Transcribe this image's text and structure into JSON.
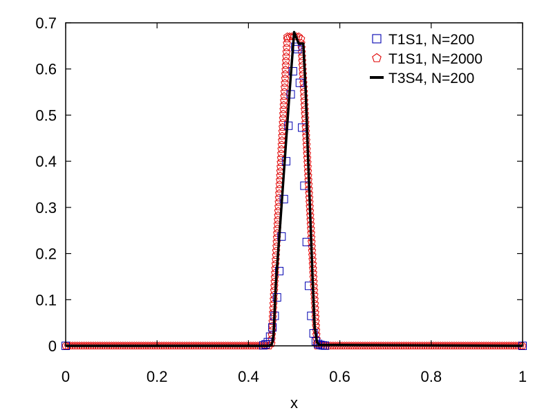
{
  "chart_data": {
    "type": "line",
    "xlabel": "x",
    "ylabel": "",
    "xlim": [
      0,
      1
    ],
    "ylim": [
      0,
      0.7
    ],
    "x_ticks": [
      {
        "value": 0,
        "label": "0"
      },
      {
        "value": 0.2,
        "label": "0.2"
      },
      {
        "value": 0.4,
        "label": "0.4"
      },
      {
        "value": 0.6,
        "label": "0.6"
      },
      {
        "value": 0.8,
        "label": "0.8"
      },
      {
        "value": 1,
        "label": "1"
      }
    ],
    "y_ticks": [
      {
        "value": 0,
        "label": "0"
      },
      {
        "value": 0.1,
        "label": "0.1"
      },
      {
        "value": 0.2,
        "label": "0.2"
      },
      {
        "value": 0.3,
        "label": "0.3"
      },
      {
        "value": 0.4,
        "label": "0.4"
      },
      {
        "value": 0.5,
        "label": "0.5"
      },
      {
        "value": 0.6,
        "label": "0.6"
      },
      {
        "value": 0.7,
        "label": "0.7"
      }
    ],
    "grid": false,
    "legend_position": "top-right",
    "series": [
      {
        "name": "T1S1, N=200",
        "style": "square-markers",
        "color": "#0000b0",
        "x": [
          0.4325,
          0.4375,
          0.4425,
          0.4475,
          0.4525,
          0.4575,
          0.4625,
          0.4675,
          0.4725,
          0.4775,
          0.4825,
          0.4875,
          0.4925,
          0.4975,
          0.5025,
          0.5075,
          0.5125,
          0.5175,
          0.5225,
          0.5275,
          0.5325,
          0.5375,
          0.5425,
          0.5475,
          0.5525,
          0.5575,
          0.5625,
          0.5675
        ],
        "y": [
          0.001,
          0.003,
          0.008,
          0.02,
          0.04,
          0.065,
          0.105,
          0.162,
          0.237,
          0.318,
          0.4,
          0.477,
          0.545,
          0.595,
          0.648,
          0.643,
          0.57,
          0.473,
          0.347,
          0.225,
          0.13,
          0.065,
          0.027,
          0.01,
          0.004,
          0.002,
          0.001,
          0.0005
        ],
        "boundary_x": [
          0,
          1
        ],
        "boundary_y": [
          0,
          0
        ]
      },
      {
        "name": "T1S1, N=2000",
        "style": "pentagon-markers",
        "color": "#e00000",
        "x_start": 0,
        "x_end": 1,
        "n_points": 2000,
        "profile": {
          "center": 0.5,
          "plateau": 0.67,
          "half_width_top": 0.015,
          "half_width_base": 0.05,
          "smoothing": 0.012
        }
      },
      {
        "name": "T3S4, N=200",
        "style": "line",
        "color": "#000000",
        "x": [
          0,
          0.445,
          0.45,
          0.4525,
          0.455,
          0.46,
          0.47,
          0.48,
          0.49,
          0.495,
          0.5,
          0.51,
          0.52,
          0.525,
          0.53,
          0.535,
          0.54,
          0.545,
          0.55,
          0.555,
          1
        ],
        "y": [
          0,
          0,
          0.002,
          0.008,
          0.025,
          0.135,
          0.27,
          0.41,
          0.55,
          0.615,
          0.68,
          0.655,
          0.655,
          0.56,
          0.42,
          0.29,
          0.155,
          0.04,
          0.008,
          0.002,
          0
        ]
      }
    ]
  }
}
